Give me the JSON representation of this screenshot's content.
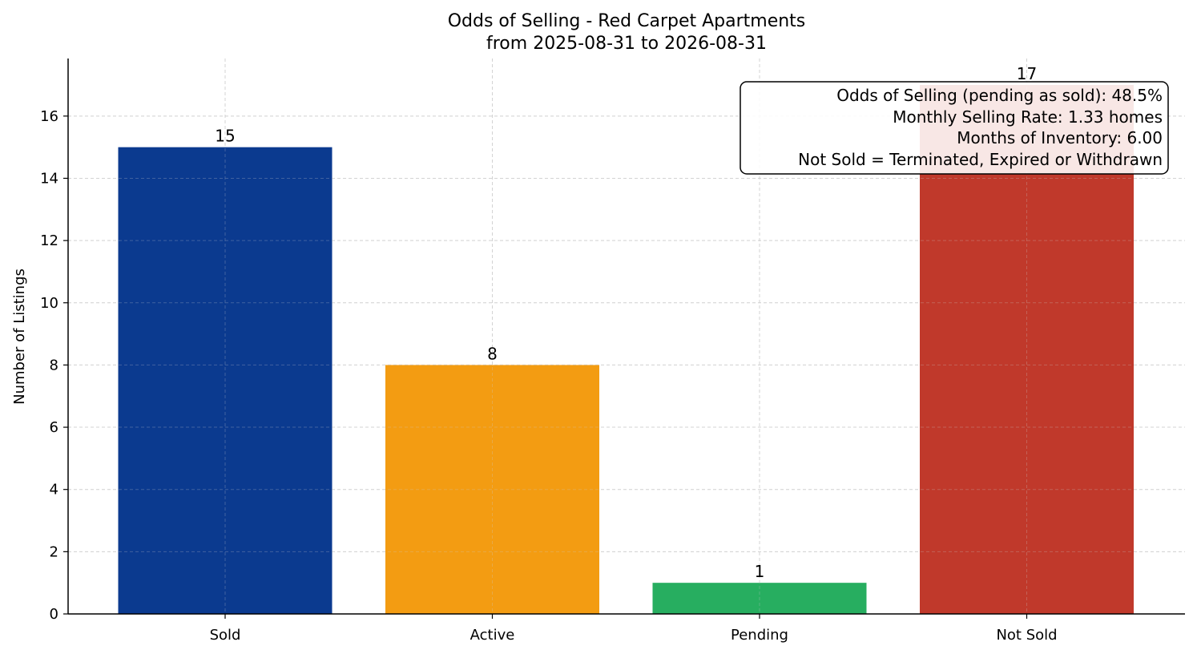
{
  "chart_data": {
    "type": "bar",
    "title": "Odds of Selling - Red Carpet Apartments",
    "subtitle": "from 2025-08-31 to 2026-08-31",
    "xlabel": "",
    "ylabel": "Number of Listings",
    "categories": [
      "Sold",
      "Active",
      "Pending",
      "Not Sold"
    ],
    "values": [
      15,
      8,
      1,
      17
    ],
    "colors": [
      "#0b3a8f",
      "#f39c12",
      "#27ae60",
      "#c0392b"
    ],
    "ylim": [
      0,
      17.85
    ],
    "yticks": [
      0,
      2,
      4,
      6,
      8,
      10,
      12,
      14,
      16
    ],
    "grid": true,
    "annotation": [
      "Odds of Selling (pending as sold): 48.5%",
      "Monthly Selling Rate: 1.33 homes",
      "Months of Inventory: 6.00",
      "Not Sold = Terminated, Expired or Withdrawn"
    ]
  }
}
